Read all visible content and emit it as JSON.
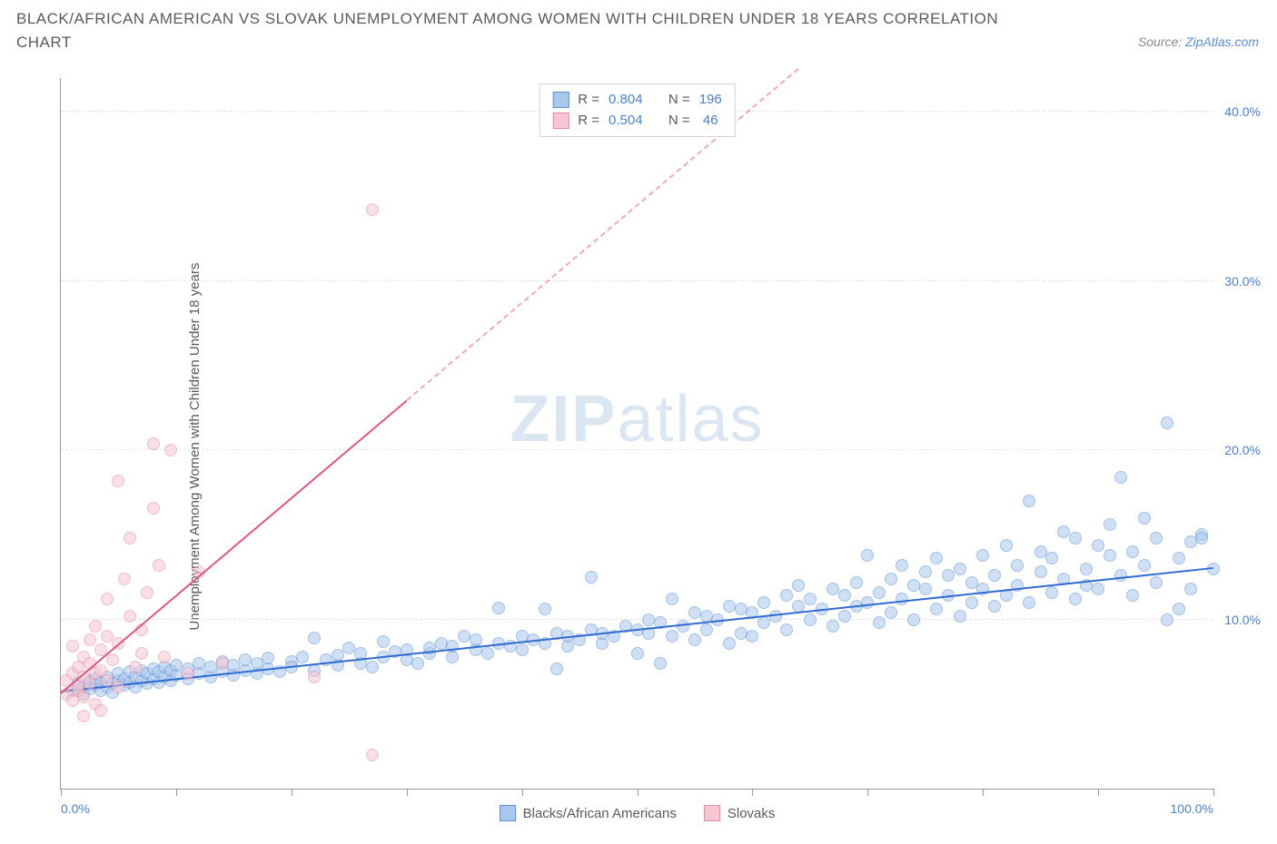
{
  "title": "BLACK/AFRICAN AMERICAN VS SLOVAK UNEMPLOYMENT AMONG WOMEN WITH CHILDREN UNDER 18 YEARS CORRELATION CHART",
  "source_prefix": "Source: ",
  "source_link": "ZipAtlas.com",
  "ylabel": "Unemployment Among Women with Children Under 18 years",
  "watermark_a": "ZIP",
  "watermark_b": "atlas",
  "chart": {
    "type": "scatter",
    "xlim": [
      0,
      100
    ],
    "ylim": [
      0,
      42
    ],
    "y_ticks": [
      10,
      20,
      30,
      40
    ],
    "y_tick_labels": [
      "10.0%",
      "20.0%",
      "30.0%",
      "40.0%"
    ],
    "x_ticks": [
      0,
      10,
      20,
      30,
      40,
      50,
      60,
      70,
      80,
      90,
      100
    ],
    "x_min_label": "0.0%",
    "x_max_label": "100.0%",
    "background_color": "#ffffff",
    "grid_color": "#e6e6e6",
    "axis_color": "#9a9a9a",
    "tick_label_color": "#4a7fd0",
    "marker_radius": 7,
    "marker_opacity": 0.55,
    "series": [
      {
        "name": "Blacks/African Americans",
        "short": "blue",
        "color_fill": "#a9c8ec",
        "color_stroke": "#5b8fd6",
        "trend_color": "#2f6bd0",
        "trend_width": 2.5,
        "trend_dash_after_x": 101,
        "R": "0.804",
        "N": "196",
        "trend_from": [
          0,
          5.7
        ],
        "trend_to": [
          100,
          13.0
        ],
        "points": [
          [
            1,
            5.8
          ],
          [
            1.5,
            6.2
          ],
          [
            2,
            6.0
          ],
          [
            2,
            5.6
          ],
          [
            2.5,
            6.4
          ],
          [
            2.5,
            5.9
          ],
          [
            3,
            6.1
          ],
          [
            3,
            6.5
          ],
          [
            3.5,
            5.8
          ],
          [
            3.5,
            6.3
          ],
          [
            4,
            6.0
          ],
          [
            4,
            6.6
          ],
          [
            4.5,
            6.2
          ],
          [
            4.5,
            5.7
          ],
          [
            5,
            6.4
          ],
          [
            5,
            6.8
          ],
          [
            5.5,
            6.1
          ],
          [
            5.5,
            6.5
          ],
          [
            6,
            6.3
          ],
          [
            6,
            6.9
          ],
          [
            6.5,
            6.0
          ],
          [
            6.5,
            6.6
          ],
          [
            7,
            6.4
          ],
          [
            7,
            7.0
          ],
          [
            7.5,
            6.2
          ],
          [
            7.5,
            6.8
          ],
          [
            8,
            6.5
          ],
          [
            8,
            7.1
          ],
          [
            8.5,
            6.3
          ],
          [
            8.5,
            6.9
          ],
          [
            9,
            6.6
          ],
          [
            9,
            7.2
          ],
          [
            9.5,
            6.4
          ],
          [
            9.5,
            7.0
          ],
          [
            10,
            6.7
          ],
          [
            10,
            7.3
          ],
          [
            11,
            6.5
          ],
          [
            11,
            7.1
          ],
          [
            12,
            6.8
          ],
          [
            12,
            7.4
          ],
          [
            13,
            6.6
          ],
          [
            13,
            7.2
          ],
          [
            14,
            6.9
          ],
          [
            14,
            7.5
          ],
          [
            15,
            6.7
          ],
          [
            15,
            7.3
          ],
          [
            16,
            7.0
          ],
          [
            16,
            7.6
          ],
          [
            17,
            6.8
          ],
          [
            17,
            7.4
          ],
          [
            18,
            7.1
          ],
          [
            18,
            7.7
          ],
          [
            19,
            6.9
          ],
          [
            20,
            7.5
          ],
          [
            20,
            7.2
          ],
          [
            21,
            7.8
          ],
          [
            22,
            7.0
          ],
          [
            22,
            8.9
          ],
          [
            23,
            7.6
          ],
          [
            24,
            7.3
          ],
          [
            24,
            7.9
          ],
          [
            25,
            8.3
          ],
          [
            26,
            7.4
          ],
          [
            26,
            8.0
          ],
          [
            27,
            7.2
          ],
          [
            28,
            7.8
          ],
          [
            28,
            8.7
          ],
          [
            29,
            8.1
          ],
          [
            30,
            7.6
          ],
          [
            30,
            8.2
          ],
          [
            31,
            7.4
          ],
          [
            32,
            8.0
          ],
          [
            32,
            8.3
          ],
          [
            33,
            8.6
          ],
          [
            34,
            7.8
          ],
          [
            34,
            8.4
          ],
          [
            35,
            9.0
          ],
          [
            36,
            8.2
          ],
          [
            36,
            8.8
          ],
          [
            37,
            8.0
          ],
          [
            38,
            8.6
          ],
          [
            38,
            10.7
          ],
          [
            39,
            8.4
          ],
          [
            40,
            9.0
          ],
          [
            40,
            8.2
          ],
          [
            41,
            8.8
          ],
          [
            42,
            8.6
          ],
          [
            42,
            10.6
          ],
          [
            43,
            9.2
          ],
          [
            43,
            7.1
          ],
          [
            44,
            8.4
          ],
          [
            44,
            9.0
          ],
          [
            45,
            8.8
          ],
          [
            46,
            9.4
          ],
          [
            46,
            12.5
          ],
          [
            47,
            8.6
          ],
          [
            47,
            9.2
          ],
          [
            48,
            9.0
          ],
          [
            49,
            9.6
          ],
          [
            50,
            9.4
          ],
          [
            50,
            8.0
          ],
          [
            51,
            9.2
          ],
          [
            51,
            10.0
          ],
          [
            52,
            7.4
          ],
          [
            52,
            9.8
          ],
          [
            53,
            9.0
          ],
          [
            53,
            11.2
          ],
          [
            54,
            9.6
          ],
          [
            55,
            10.4
          ],
          [
            55,
            8.8
          ],
          [
            56,
            10.2
          ],
          [
            56,
            9.4
          ],
          [
            57,
            10.0
          ],
          [
            58,
            10.8
          ],
          [
            58,
            8.6
          ],
          [
            59,
            9.2
          ],
          [
            59,
            10.6
          ],
          [
            60,
            10.4
          ],
          [
            60,
            9.0
          ],
          [
            61,
            11.0
          ],
          [
            61,
            9.8
          ],
          [
            62,
            10.2
          ],
          [
            63,
            11.4
          ],
          [
            63,
            9.4
          ],
          [
            64,
            10.8
          ],
          [
            64,
            12.0
          ],
          [
            65,
            10.0
          ],
          [
            65,
            11.2
          ],
          [
            66,
            10.6
          ],
          [
            67,
            11.8
          ],
          [
            67,
            9.6
          ],
          [
            68,
            11.4
          ],
          [
            68,
            10.2
          ],
          [
            69,
            12.2
          ],
          [
            69,
            10.8
          ],
          [
            70,
            11.0
          ],
          [
            70,
            13.8
          ],
          [
            71,
            9.8
          ],
          [
            71,
            11.6
          ],
          [
            72,
            12.4
          ],
          [
            72,
            10.4
          ],
          [
            73,
            11.2
          ],
          [
            73,
            13.2
          ],
          [
            74,
            10.0
          ],
          [
            74,
            12.0
          ],
          [
            75,
            11.8
          ],
          [
            75,
            12.8
          ],
          [
            76,
            10.6
          ],
          [
            76,
            13.6
          ],
          [
            77,
            11.4
          ],
          [
            77,
            12.6
          ],
          [
            78,
            10.2
          ],
          [
            78,
            13.0
          ],
          [
            79,
            11.0
          ],
          [
            79,
            12.2
          ],
          [
            80,
            11.8
          ],
          [
            80,
            13.8
          ],
          [
            81,
            10.8
          ],
          [
            81,
            12.6
          ],
          [
            82,
            14.4
          ],
          [
            82,
            11.4
          ],
          [
            83,
            13.2
          ],
          [
            83,
            12.0
          ],
          [
            84,
            17.0
          ],
          [
            84,
            11.0
          ],
          [
            85,
            12.8
          ],
          [
            85,
            14.0
          ],
          [
            86,
            11.6
          ],
          [
            86,
            13.6
          ],
          [
            87,
            12.4
          ],
          [
            87,
            15.2
          ],
          [
            88,
            11.2
          ],
          [
            88,
            14.8
          ],
          [
            89,
            13.0
          ],
          [
            89,
            12.0
          ],
          [
            90,
            14.4
          ],
          [
            90,
            11.8
          ],
          [
            91,
            13.8
          ],
          [
            91,
            15.6
          ],
          [
            92,
            12.6
          ],
          [
            92,
            18.4
          ],
          [
            93,
            11.4
          ],
          [
            93,
            14.0
          ],
          [
            94,
            16.0
          ],
          [
            94,
            13.2
          ],
          [
            95,
            12.2
          ],
          [
            95,
            14.8
          ],
          [
            96,
            10.0
          ],
          [
            96,
            21.6
          ],
          [
            97,
            10.6
          ],
          [
            97,
            13.6
          ],
          [
            98,
            14.6
          ],
          [
            98,
            11.8
          ],
          [
            99,
            15.0
          ],
          [
            99,
            14.8
          ],
          [
            100,
            13.0
          ]
        ]
      },
      {
        "name": "Slovaks",
        "short": "pink",
        "color_fill": "#f6c6d2",
        "color_stroke": "#e68aa3",
        "trend_color": "#e25582",
        "trend_width": 2,
        "trend_dash_after_x": 30,
        "R": "0.504",
        "N": "46",
        "trend_from": [
          0,
          5.6
        ],
        "trend_to": [
          64,
          42.5
        ],
        "points": [
          [
            0.5,
            5.6
          ],
          [
            0.5,
            6.4
          ],
          [
            1,
            5.2
          ],
          [
            1,
            6.8
          ],
          [
            1,
            8.4
          ],
          [
            1.5,
            5.8
          ],
          [
            1.5,
            7.2
          ],
          [
            1.5,
            6.0
          ],
          [
            2,
            4.3
          ],
          [
            2,
            6.6
          ],
          [
            2,
            7.8
          ],
          [
            2,
            5.4
          ],
          [
            2.5,
            8.8
          ],
          [
            2.5,
            6.2
          ],
          [
            2.5,
            7.4
          ],
          [
            3,
            5.0
          ],
          [
            3,
            9.6
          ],
          [
            3,
            6.8
          ],
          [
            3.5,
            4.6
          ],
          [
            3.5,
            8.2
          ],
          [
            3.5,
            7.0
          ],
          [
            4,
            11.2
          ],
          [
            4,
            6.4
          ],
          [
            4,
            9.0
          ],
          [
            4.5,
            7.6
          ],
          [
            5,
            18.2
          ],
          [
            5,
            8.6
          ],
          [
            5,
            6.0
          ],
          [
            5.5,
            12.4
          ],
          [
            6,
            10.2
          ],
          [
            6,
            14.8
          ],
          [
            6.5,
            7.2
          ],
          [
            7,
            8.0
          ],
          [
            7,
            9.4
          ],
          [
            7.5,
            11.6
          ],
          [
            8,
            16.6
          ],
          [
            8,
            20.4
          ],
          [
            8.5,
            13.2
          ],
          [
            9,
            7.8
          ],
          [
            9.5,
            20.0
          ],
          [
            11,
            6.8
          ],
          [
            12,
            12.8
          ],
          [
            14,
            7.4
          ],
          [
            22,
            6.6
          ],
          [
            27,
            2.0
          ],
          [
            27,
            34.2
          ]
        ]
      }
    ],
    "legend_top": {
      "rows": [
        {
          "swatch_fill": "#a9c8ec",
          "swatch_stroke": "#5b8fd6",
          "r_label": "R =",
          "r_val": "0.804",
          "n_label": "N =",
          "n_val": "196"
        },
        {
          "swatch_fill": "#f6c6d2",
          "swatch_stroke": "#e68aa3",
          "r_label": "R =",
          "r_val": "0.504",
          "n_label": "N =",
          "n_val": " 46"
        }
      ]
    },
    "legend_bottom": [
      {
        "swatch_fill": "#a9c8ec",
        "swatch_stroke": "#5b8fd6",
        "label": "Blacks/African Americans"
      },
      {
        "swatch_fill": "#f6c6d2",
        "swatch_stroke": "#e68aa3",
        "label": "Slovaks"
      }
    ]
  }
}
